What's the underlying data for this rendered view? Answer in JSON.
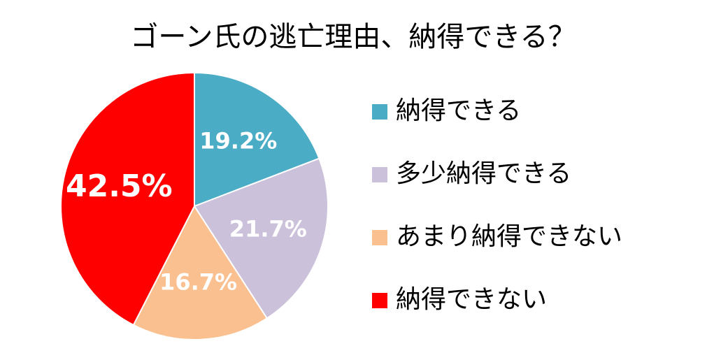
{
  "chart_data": {
    "type": "pie",
    "title": "ゴーン氏の逃亡理由、納得できる？",
    "categories": [
      "納得できる",
      "多少納得できる",
      "あまり納得できない",
      "納得できない"
    ],
    "values": [
      19.2,
      21.7,
      16.7,
      42.5
    ],
    "value_labels": [
      "19.2%",
      "21.7%",
      "16.7%",
      "42.5%"
    ],
    "colors": [
      "#4bacc6",
      "#ccc1da",
      "#fac090",
      "#ff0000"
    ],
    "legend": "right"
  }
}
